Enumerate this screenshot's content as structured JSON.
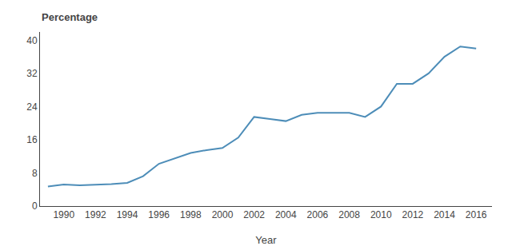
{
  "chart_data": {
    "type": "line",
    "xlabel": "Year",
    "ylabel": "Percentage",
    "x": [
      1989,
      1990,
      1991,
      1992,
      1993,
      1994,
      1995,
      1996,
      1997,
      1998,
      1999,
      2000,
      2001,
      2002,
      2003,
      2004,
      2005,
      2006,
      2007,
      2008,
      2009,
      2010,
      2011,
      2012,
      2013,
      2014,
      2015,
      2016
    ],
    "values": [
      4.7,
      5.2,
      5.0,
      5.1,
      5.3,
      5.6,
      7.2,
      10.2,
      11.5,
      12.8,
      13.5,
      14.0,
      16.5,
      21.5,
      21.0,
      20.5,
      22.0,
      22.5,
      22.5,
      22.5,
      21.5,
      24.0,
      29.5,
      29.5,
      32.0,
      36.0,
      38.5,
      38.0
    ],
    "color": "#4d8db8",
    "xlim": [
      1988.5,
      2017
    ],
    "xticks": [
      1990,
      1992,
      1994,
      1996,
      1998,
      2000,
      2002,
      2004,
      2006,
      2008,
      2010,
      2012,
      2014,
      2016
    ],
    "ylim": [
      0,
      42
    ],
    "yticks": [
      0,
      8,
      16,
      24,
      32,
      40
    ],
    "grid": false
  }
}
